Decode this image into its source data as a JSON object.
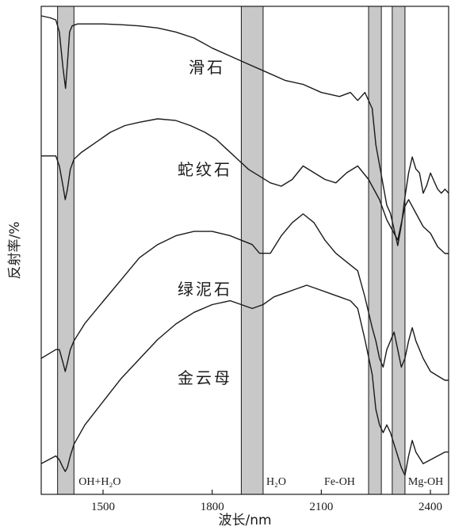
{
  "chart_data": {
    "type": "line",
    "xlabel": "波长/nm",
    "ylabel": "反射率/%",
    "xlim": [
      1330,
      2450
    ],
    "xticks": [
      1500,
      1800,
      2100,
      2400
    ],
    "bands": [
      {
        "label": "OH+H₂O",
        "from": 1375,
        "to": 1420
      },
      {
        "label": "H₂O",
        "from": 1880,
        "to": 1940
      },
      {
        "label": "Fe-OH",
        "from": 2230,
        "to": 2265
      },
      {
        "label": "Mg-OH",
        "from": 2295,
        "to": 2330
      }
    ],
    "series": [
      {
        "name": "滑石",
        "x": [
          1330,
          1355,
          1370,
          1380,
          1390,
          1397,
          1402,
          1408,
          1415,
          1430,
          1460,
          1500,
          1550,
          1600,
          1650,
          1700,
          1750,
          1800,
          1850,
          1900,
          1950,
          2000,
          2050,
          2100,
          2150,
          2180,
          2200,
          2220,
          2240,
          2250,
          2260,
          2270,
          2280,
          2290,
          2300,
          2310,
          2320,
          2330,
          2340,
          2350,
          2360,
          2370,
          2380,
          2390,
          2400,
          2410,
          2420,
          2430,
          2440,
          2450
        ],
        "y": [
          97,
          96.5,
          96,
          93,
          84,
          79,
          85,
          93,
          94.5,
          95,
          95,
          95,
          94.8,
          94.5,
          94,
          93,
          91.5,
          89,
          87,
          85,
          83,
          81,
          80,
          78,
          77,
          78,
          76,
          78,
          74,
          65,
          60,
          55,
          50,
          48,
          44,
          40,
          45,
          52,
          58,
          62,
          59,
          58,
          53,
          55,
          58,
          56,
          54,
          53,
          54,
          53
        ]
      },
      {
        "name": "蛇纹石",
        "x": [
          1330,
          1350,
          1370,
          1380,
          1390,
          1396,
          1402,
          1410,
          1420,
          1440,
          1480,
          1520,
          1560,
          1600,
          1650,
          1700,
          1740,
          1780,
          1810,
          1840,
          1870,
          1900,
          1930,
          1960,
          1990,
          2020,
          2050,
          2080,
          2110,
          2140,
          2170,
          2200,
          2230,
          2260,
          2280,
          2300,
          2310,
          2320,
          2330,
          2340,
          2360,
          2380,
          2400,
          2420,
          2440,
          2450
        ],
        "y": [
          73,
          73,
          73,
          70,
          64,
          60,
          63,
          69,
          72,
          74,
          77,
          80,
          82,
          83,
          84,
          83.5,
          82,
          80,
          78,
          75,
          72,
          69,
          67,
          65,
          64,
          66,
          70,
          68,
          66,
          65,
          68,
          70,
          66,
          60,
          54,
          50,
          48,
          53,
          58,
          60,
          56,
          52,
          50,
          46,
          44,
          44
        ]
      },
      {
        "name": "绿泥石",
        "x": [
          1330,
          1350,
          1370,
          1380,
          1390,
          1396,
          1402,
          1410,
          1420,
          1450,
          1500,
          1550,
          1600,
          1650,
          1700,
          1750,
          1800,
          1850,
          1880,
          1910,
          1930,
          1960,
          1990,
          2020,
          2050,
          2080,
          2110,
          2140,
          2170,
          2200,
          2220,
          2240,
          2250,
          2260,
          2270,
          2280,
          2290,
          2300,
          2310,
          2320,
          2330,
          2340,
          2350,
          2360,
          2380,
          2400,
          2420,
          2440,
          2450
        ],
        "y": [
          38,
          39,
          40,
          40,
          37,
          35,
          37,
          40,
          42,
          46,
          51,
          56,
          61,
          64,
          66,
          67,
          67,
          66,
          65,
          64,
          62,
          62,
          66,
          69,
          71,
          69,
          65,
          62,
          60,
          58,
          52,
          45,
          42,
          38,
          36,
          40,
          42,
          44,
          40,
          36,
          38,
          42,
          45,
          42,
          38,
          35,
          34,
          33,
          33
        ]
      },
      {
        "name": "金云母",
        "x": [
          1330,
          1350,
          1370,
          1380,
          1390,
          1396,
          1402,
          1410,
          1420,
          1450,
          1500,
          1550,
          1600,
          1650,
          1700,
          1750,
          1800,
          1850,
          1880,
          1910,
          1940,
          1970,
          2000,
          2030,
          2060,
          2090,
          2120,
          2150,
          2180,
          2200,
          2220,
          2240,
          2250,
          2260,
          2270,
          2280,
          2290,
          2300,
          2310,
          2320,
          2330,
          2340,
          2350,
          2360,
          2380,
          2400,
          2420,
          2440,
          2450
        ],
        "y": [
          20,
          21,
          22,
          21,
          19,
          18,
          19,
          22,
          25,
          30,
          36,
          42,
          47,
          52,
          56,
          59,
          61,
          62,
          61,
          60,
          61,
          63,
          64,
          65,
          66,
          65,
          64,
          63,
          62,
          60,
          52,
          43,
          34,
          30,
          28,
          30,
          28,
          25,
          22,
          19,
          17,
          22,
          26,
          23,
          20,
          21,
          22,
          23,
          23
        ]
      }
    ]
  }
}
